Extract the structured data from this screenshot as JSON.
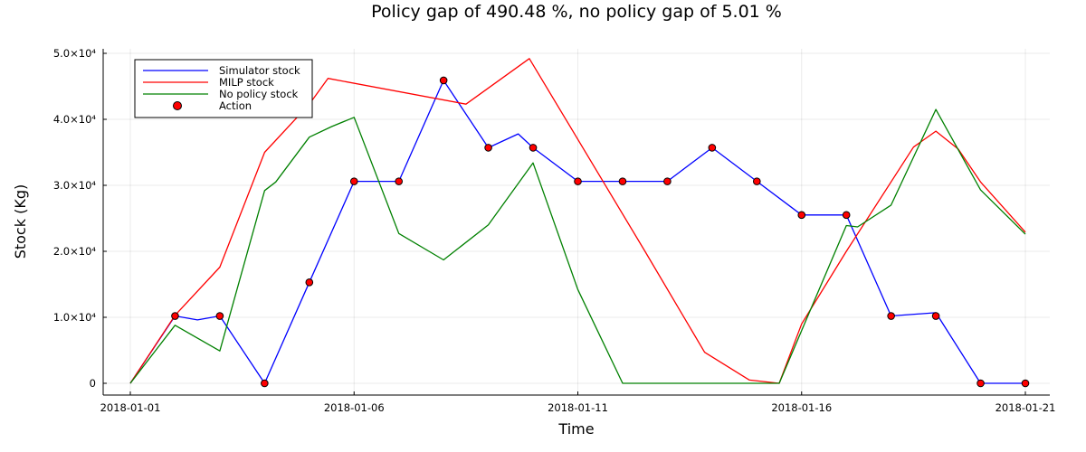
{
  "chart_data": {
    "type": "line",
    "title": "Policy gap of 490.48 %, no policy gap of 5.01 %",
    "xlabel": "Time",
    "ylabel": "Stock (Kg)",
    "xlim": [
      "2018-01-01",
      "2018-01-21"
    ],
    "ylim": [
      -2000,
      51000
    ],
    "x_ticks": [
      "2018-01-01",
      "2018-01-06",
      "2018-01-11",
      "2018-01-16",
      "2018-01-21"
    ],
    "y_ticks": [
      {
        "value": 0,
        "label": "0"
      },
      {
        "value": 10000,
        "label": "1.0×10⁴"
      },
      {
        "value": 20000,
        "label": "2.0×10⁴"
      },
      {
        "value": 30000,
        "label": "3.0×10⁴"
      },
      {
        "value": 40000,
        "label": "4.0×10⁴"
      },
      {
        "value": 50000,
        "label": "5.0×10⁴"
      }
    ],
    "grid": true,
    "legend_position": "top-left",
    "series": [
      {
        "name": "Simulator stock",
        "color": "#0000ff",
        "kind": "line",
        "points": [
          [
            "2018-01-01",
            0
          ],
          [
            "2018-01-02",
            10200
          ],
          [
            "2018-01-02 12:00",
            9600
          ],
          [
            "2018-01-03",
            10200
          ],
          [
            "2018-01-04",
            0
          ],
          [
            "2018-01-05",
            15300
          ],
          [
            "2018-01-06",
            30600
          ],
          [
            "2018-01-07",
            30600
          ],
          [
            "2018-01-08",
            45900
          ],
          [
            "2018-01-09",
            35700
          ],
          [
            "2018-01-09 16:00",
            37800
          ],
          [
            "2018-01-10",
            35700
          ],
          [
            "2018-01-11",
            30600
          ],
          [
            "2018-01-12",
            30600
          ],
          [
            "2018-01-13",
            30600
          ],
          [
            "2018-01-14",
            35700
          ],
          [
            "2018-01-15",
            30600
          ],
          [
            "2018-01-16",
            25500
          ],
          [
            "2018-01-17",
            25500
          ],
          [
            "2018-01-18",
            10200
          ],
          [
            "2018-01-19",
            10700
          ],
          [
            "2018-01-20",
            0
          ],
          [
            "2018-01-21",
            0
          ]
        ]
      },
      {
        "name": "MILP stock",
        "color": "#ff0000",
        "kind": "line",
        "points": [
          [
            "2018-01-01",
            0
          ],
          [
            "2018-01-02",
            10300
          ],
          [
            "2018-01-03",
            17600
          ],
          [
            "2018-01-04",
            35000
          ],
          [
            "2018-01-05",
            42300
          ],
          [
            "2018-01-05 10:00",
            46200
          ],
          [
            "2018-01-08 12:00",
            42300
          ],
          [
            "2018-01-09 22:00",
            49200
          ],
          [
            "2018-01-12 12:00",
            20000
          ],
          [
            "2018-01-13 20:00",
            4700
          ],
          [
            "2018-01-14 20:00",
            500
          ],
          [
            "2018-01-15 12:00",
            0
          ],
          [
            "2018-01-16",
            9000
          ],
          [
            "2018-01-17",
            20000
          ],
          [
            "2018-01-18 12:00",
            35800
          ],
          [
            "2018-01-19",
            38200
          ],
          [
            "2018-01-19 12:00",
            35500
          ],
          [
            "2018-01-20",
            30500
          ],
          [
            "2018-01-21",
            22900
          ]
        ]
      },
      {
        "name": "No policy stock",
        "color": "#008000",
        "kind": "line",
        "points": [
          [
            "2018-01-01",
            0
          ],
          [
            "2018-01-02",
            8800
          ],
          [
            "2018-01-03",
            4900
          ],
          [
            "2018-01-04",
            29200
          ],
          [
            "2018-01-04 06:00",
            30500
          ],
          [
            "2018-01-05",
            37300
          ],
          [
            "2018-01-05 12:00",
            38900
          ],
          [
            "2018-01-06",
            40300
          ],
          [
            "2018-01-07",
            22700
          ],
          [
            "2018-01-08",
            18700
          ],
          [
            "2018-01-09",
            24000
          ],
          [
            "2018-01-10",
            33400
          ],
          [
            "2018-01-11",
            14200
          ],
          [
            "2018-01-12",
            0
          ],
          [
            "2018-01-15 12:00",
            0
          ],
          [
            "2018-01-16",
            8000
          ],
          [
            "2018-01-17",
            23900
          ],
          [
            "2018-01-17 06:00",
            23700
          ],
          [
            "2018-01-18",
            27000
          ],
          [
            "2018-01-19",
            41500
          ],
          [
            "2018-01-20",
            29300
          ],
          [
            "2018-01-21",
            22600
          ]
        ]
      },
      {
        "name": "Action",
        "color": "#ff0000",
        "kind": "scatter",
        "points": [
          [
            "2018-01-02",
            10200
          ],
          [
            "2018-01-03",
            10200
          ],
          [
            "2018-01-04",
            0
          ],
          [
            "2018-01-05",
            15300
          ],
          [
            "2018-01-06",
            30600
          ],
          [
            "2018-01-07",
            30600
          ],
          [
            "2018-01-08",
            45900
          ],
          [
            "2018-01-09",
            35700
          ],
          [
            "2018-01-10",
            35700
          ],
          [
            "2018-01-11",
            30600
          ],
          [
            "2018-01-12",
            30600
          ],
          [
            "2018-01-13",
            30600
          ],
          [
            "2018-01-14",
            35700
          ],
          [
            "2018-01-15",
            30600
          ],
          [
            "2018-01-16",
            25500
          ],
          [
            "2018-01-17",
            25500
          ],
          [
            "2018-01-18",
            10200
          ],
          [
            "2018-01-19",
            10200
          ],
          [
            "2018-01-20",
            0
          ],
          [
            "2018-01-21",
            0
          ]
        ]
      }
    ]
  }
}
